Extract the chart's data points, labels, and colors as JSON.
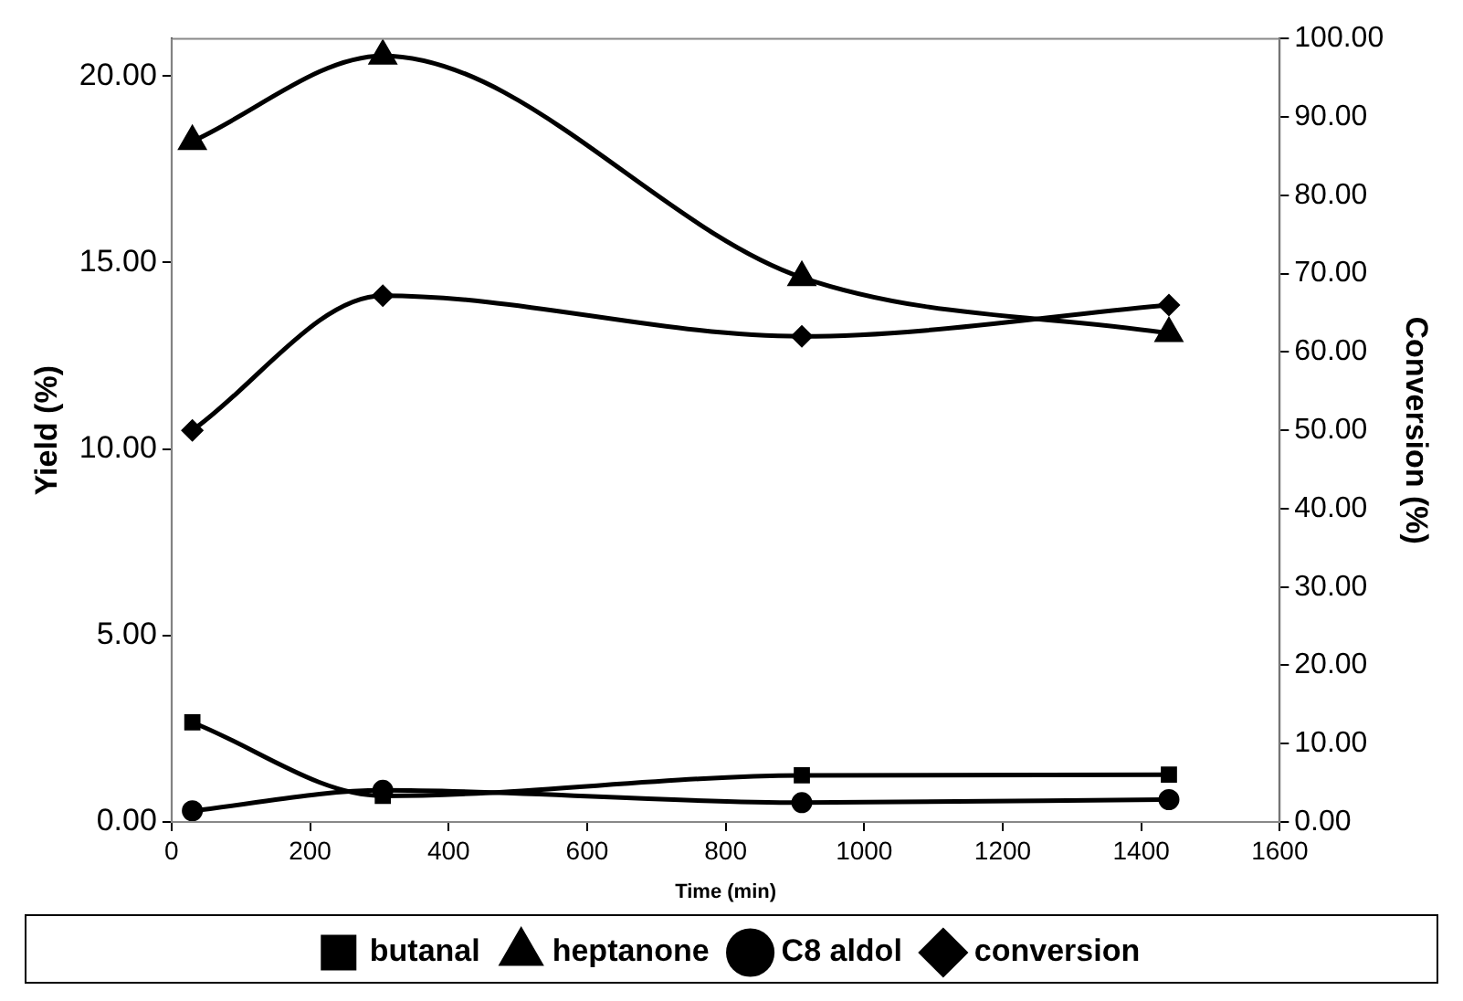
{
  "chart_data": {
    "type": "line",
    "xlabel": "Time (min)",
    "ylabel": "Yield (%)",
    "y2label": "Conversion (%)",
    "xlim": [
      0,
      1600
    ],
    "xticks": [
      0,
      200,
      400,
      600,
      800,
      1000,
      1200,
      1400,
      1600
    ],
    "ylim": [
      0,
      21
    ],
    "yticks": [
      {
        "value": 0,
        "label": "0.00"
      },
      {
        "value": 5,
        "label": "5.00"
      },
      {
        "value": 10,
        "label": "10.00"
      },
      {
        "value": 15,
        "label": "15.00"
      },
      {
        "value": 20,
        "label": "20.00"
      }
    ],
    "y2lim": [
      0,
      100
    ],
    "y2ticks": [
      {
        "value": 0,
        "label": "0.00"
      },
      {
        "value": 10,
        "label": "10.00"
      },
      {
        "value": 20,
        "label": "20.00"
      },
      {
        "value": 30,
        "label": "30.00"
      },
      {
        "value": 40,
        "label": "40.00"
      },
      {
        "value": 50,
        "label": "50.00"
      },
      {
        "value": 60,
        "label": "60.00"
      },
      {
        "value": 70,
        "label": "70.00"
      },
      {
        "value": 80,
        "label": "80.00"
      },
      {
        "value": 90,
        "label": "90.00"
      },
      {
        "value": 100,
        "label": "100.00"
      }
    ],
    "x": [
      30,
      305,
      910,
      1440
    ],
    "series": [
      {
        "name": "butanal",
        "color": "#000000",
        "marker": "square",
        "values": [
          2.67,
          0.7,
          1.25,
          1.27
        ]
      },
      {
        "name": "heptanone",
        "color": "#000000",
        "marker": "triangle",
        "values": [
          18.25,
          20.54,
          14.6,
          13.1
        ]
      },
      {
        "name": "C8 aldol",
        "color": "#000000",
        "marker": "circle",
        "values": [
          0.3,
          0.85,
          0.52,
          0.6
        ]
      },
      {
        "name": "conversion",
        "color": "#000000",
        "marker": "diamond",
        "axis": "y2",
        "values": [
          50.0,
          67.2,
          62.0,
          66.0
        ]
      }
    ],
    "grid": false,
    "legend": "bottom"
  }
}
